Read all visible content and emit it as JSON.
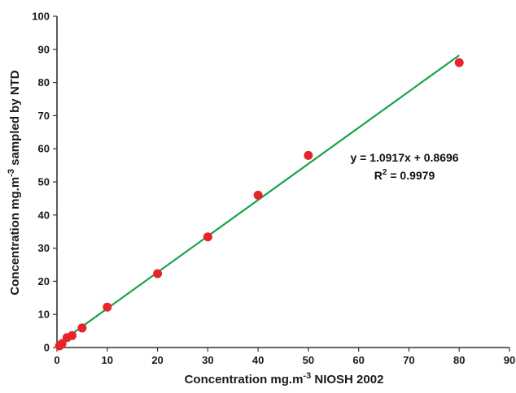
{
  "chart_data": {
    "type": "scatter",
    "title": "",
    "xlabel": "Concentration mg.m",
    "xlabel_sup": "-3",
    "xlabel_tail": " NIOSH 2002",
    "ylabel": "Concentration mg.m",
    "ylabel_sup": "-3",
    "ylabel_tail": " sampled by NTD",
    "xlim": [
      0,
      90
    ],
    "ylim": [
      0,
      100
    ],
    "xticks": [
      0,
      10,
      20,
      30,
      40,
      50,
      60,
      70,
      80,
      90
    ],
    "yticks": [
      0,
      10,
      20,
      30,
      40,
      50,
      60,
      70,
      80,
      90,
      100
    ],
    "x_tick_labels": [
      "0",
      "10",
      "20",
      "30",
      "40",
      "50",
      "60",
      "70",
      "80",
      "90"
    ],
    "y_tick_labels": [
      "0",
      "10",
      "20",
      "30",
      "40",
      "50",
      "60",
      "70",
      "80",
      "90",
      "100"
    ],
    "grid": false,
    "series": [
      {
        "color": "#e8242b",
        "points": [
          {
            "x": 0.5,
            "y": 0.5
          },
          {
            "x": 1,
            "y": 1.2
          },
          {
            "x": 2,
            "y": 3.0
          },
          {
            "x": 3,
            "y": 3.6
          },
          {
            "x": 5,
            "y": 5.9
          },
          {
            "x": 10,
            "y": 12.2
          },
          {
            "x": 20,
            "y": 22.3
          },
          {
            "x": 30,
            "y": 33.4
          },
          {
            "x": 40,
            "y": 46
          },
          {
            "x": 50,
            "y": 58
          },
          {
            "x": 80,
            "y": 86
          }
        ]
      }
    ],
    "trendline": {
      "color": "#1aa34a",
      "slope": 1.0917,
      "intercept": 0.8696,
      "x_range": [
        0,
        80
      ],
      "equation": "y = 1.0917x + 0.8696",
      "r2_prefix": "R",
      "r2_sup": "2",
      "r2_value": " = 0.9979"
    }
  }
}
